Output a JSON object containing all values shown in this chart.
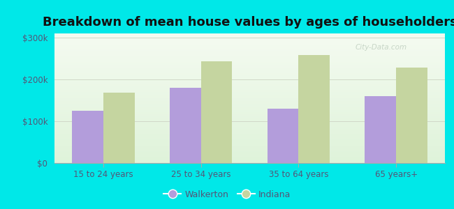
{
  "title": "Breakdown of mean house values by ages of householders",
  "categories": [
    "15 to 24 years",
    "25 to 34 years",
    "35 to 64 years",
    "65 years+"
  ],
  "walkerton_values": [
    125000,
    180000,
    130000,
    160000
  ],
  "indiana_values": [
    168000,
    243000,
    258000,
    228000
  ],
  "walkerton_color": "#b39ddb",
  "indiana_color": "#c5d5a0",
  "background_color": "#00e8e8",
  "plot_bg_top": "#f0f8ee",
  "plot_bg_bottom": "#e0f0d8",
  "yticks": [
    0,
    100000,
    200000,
    300000
  ],
  "ylabels": [
    "$0",
    "$100k",
    "$200k",
    "$300k"
  ],
  "ylim": [
    0,
    310000
  ],
  "legend_walkerton": "Walkerton",
  "legend_indiana": "Indiana",
  "bar_width": 0.32,
  "title_fontsize": 13,
  "tick_fontsize": 8.5,
  "legend_fontsize": 9,
  "text_color": "#555577",
  "grid_color": "#d0d8c8",
  "watermark_text": "City-Data.com",
  "watermark_color": "#c0cfc0"
}
